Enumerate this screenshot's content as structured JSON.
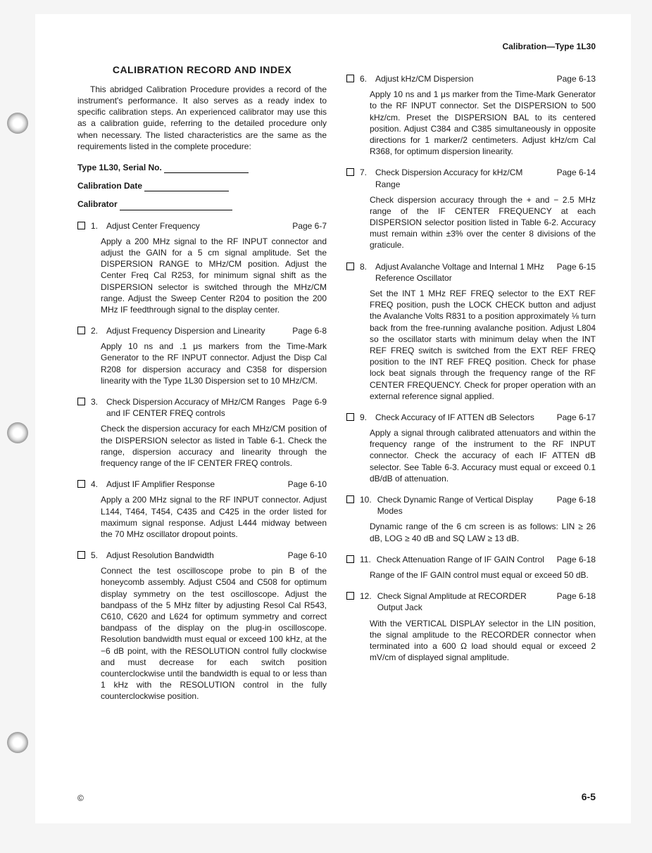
{
  "header": "Calibration—Type 1L30",
  "title": "CALIBRATION RECORD AND INDEX",
  "intro": "This abridged Calibration Procedure provides a record of the instrument's performance. It also serves as a ready index to specific calibration steps. An experienced calibrator may use this as a calibration guide, referring to the detailed procedure only when necessary. The listed characteristics are the same as the requirements listed in the complete procedure:",
  "form": {
    "line1": "Type 1L30, Serial No.",
    "line2": "Calibration Date",
    "line3": "Calibrator"
  },
  "items": [
    {
      "n": "1.",
      "t": "Adjust Center Frequency",
      "p": "Page 6-7",
      "b": "Apply a 200 MHz signal to the RF INPUT connector and adjust the GAIN for a 5 cm signal amplitude. Set the DISPERSION RANGE to MHz/CM position. Adjust the Center Freq Cal R253, for minimum signal shift as the DISPERSION selector is switched through the MHz/CM range. Adjust the Sweep Center R204 to position the 200 MHz IF feedthrough signal to the display center."
    },
    {
      "n": "2.",
      "t": "Adjust Frequency Dispersion and Linearity",
      "p": "Page 6-8",
      "b": "Apply 10 ns and .1 μs markers from the Time-Mark Generator to the RF INPUT connector. Adjust the Disp Cal R208 for dispersion accuracy and C358 for dispersion linearity with the Type 1L30 Dispersion set to 10 MHz/CM."
    },
    {
      "n": "3.",
      "t": "Check Dispersion Accuracy of MHz/CM Ranges and IF CENTER FREQ controls",
      "p": "Page 6-9",
      "b": "Check the dispersion accuracy for each MHz/CM position of the DISPERSION selector as listed in Table 6-1. Check the range, dispersion accuracy and linearity through the frequency range of the IF CENTER FREQ controls."
    },
    {
      "n": "4.",
      "t": "Adjust IF Amplifier Response",
      "p": "Page 6-10",
      "b": "Apply a 200 MHz signal to the RF INPUT connector. Adjust L144, T464, T454, C435 and C425 in the order listed for maximum signal response. Adjust L444 midway between the 70 MHz oscillator dropout points."
    },
    {
      "n": "5.",
      "t": "Adjust Resolution Bandwidth",
      "p": "Page 6-10",
      "b": "Connect the test oscilloscope probe to pin B of the honeycomb assembly. Adjust C504 and C508 for optimum display symmetry on the test oscilloscope. Adjust the bandpass of the 5 MHz filter by adjusting Resol Cal R543, C610, C620 and L624 for optimum symmetry and correct bandpass of the display on the plug-in oscilloscope. Resolution bandwidth must equal or exceed 100 kHz, at the −6 dB point, with the RESOLUTION control fully clockwise and must decrease for each switch position counterclockwise until the bandwidth is equal to or less than 1 kHz with the RESOLUTION control in the fully counterclockwise position."
    },
    {
      "n": "6.",
      "t": "Adjust kHz/CM Dispersion",
      "p": "Page 6-13",
      "b": "Apply 10 ns and 1 μs marker from the Time-Mark Generator to the RF INPUT connector. Set the DISPERSION to 500 kHz/cm. Preset the DISPERSION BAL to its centered position. Adjust C384 and C385 simultaneously in opposite directions for 1 marker/2 centimeters. Adjust kHz/cm Cal R368, for optimum dispersion linearity."
    },
    {
      "n": "7.",
      "t": "Check Dispersion Accuracy for kHz/CM Range",
      "p": "Page 6-14",
      "b": "Check dispersion accuracy through the + and − 2.5 MHz range of the IF CENTER FREQUENCY at each DISPERSION selector position listed in Table 6-2. Accuracy must remain within ±3% over the center 8 divisions of the graticule."
    },
    {
      "n": "8.",
      "t": "Adjust Avalanche Voltage and Internal 1 MHz Reference Oscillator",
      "p": "Page 6-15",
      "b": "Set the INT 1 MHz REF FREQ selector to the EXT REF FREQ position, push the LOCK CHECK button and adjust the Avalanche Volts R831 to a position approximately ⅛ turn back from the free-running avalanche position. Adjust L804 so the oscillator starts with minimum delay when the INT REF FREQ switch is switched from the EXT REF FREQ position to the INT REF FREQ position. Check for phase lock beat signals through the frequency range of the RF CENTER FREQUENCY. Check for proper operation with an external reference signal applied."
    },
    {
      "n": "9.",
      "t": "Check Accuracy of IF ATTEN dB Selectors",
      "p": "Page 6-17",
      "b": "Apply a signal through calibrated attenuators and within the frequency range of the instrument to the RF INPUT connector. Check the accuracy of each IF ATTEN dB selector. See Table 6-3. Accuracy must equal or exceed 0.1 dB/dB of attenuation."
    },
    {
      "n": "10.",
      "t": "Check Dynamic Range of Vertical Display Modes",
      "p": "Page 6-18",
      "b": "Dynamic range of the 6 cm screen is as follows: LIN ≥ 26 dB, LOG ≥ 40 dB and SQ LAW ≥ 13 dB."
    },
    {
      "n": "11.",
      "t": "Check Attenuation Range of IF GAIN Control",
      "p": "Page 6-18",
      "b": "Range of the IF GAIN control must equal or exceed 50 dB."
    },
    {
      "n": "12.",
      "t": "Check Signal Amplitude at RECORDER Output Jack",
      "p": "Page 6-18",
      "b": "With the VERTICAL DISPLAY selector in the LIN position, the signal amplitude to the RECORDER connector when terminated into a 600 Ω load should equal or exceed 2 mV/cm of displayed signal amplitude."
    }
  ],
  "pageNum": "6-5",
  "copyright": "©"
}
